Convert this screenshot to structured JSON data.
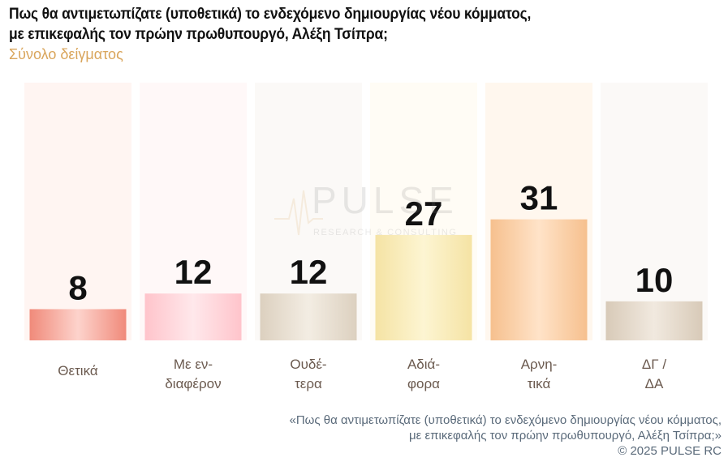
{
  "title": "Πως θα αντιμετωπίζατε (υποθετικά) το ενδεχόμενο δημιουργίας νέου κόμματος, με επικεφαλής τον πρώην πρωθυπουργό, Αλέξη Τσίπρα;",
  "subtitle": "Σύνολο δείγματος",
  "chart_data": {
    "type": "bar",
    "categories": [
      "Θετικά",
      "Με εν-\nδιαφέρον",
      "Ουδέ-\nτερα",
      "Αδιά-\nφορα",
      "Αρνη-\nτικά",
      "ΔΓ /\nΔΑ"
    ],
    "values": [
      8,
      12,
      12,
      27,
      31,
      10
    ],
    "title": "Πως θα αντιμετωπίζατε (υποθετικά) το ενδεχόμενο δημιουργίας νέου κόμματος, με επικεφαλής τον πρώην πρωθυπουργό, Αλέξη Τσίπρα;",
    "subtitle": "Σύνολο δείγματος",
    "xlabel": "",
    "ylabel": "",
    "ylim": [
      0,
      66
    ],
    "grid": false,
    "legend": "none",
    "colors": [
      "#f08a7a",
      "#ffc4cb",
      "#dcd0bf",
      "#f5e3a4",
      "#f6c08e",
      "#d8cab8"
    ],
    "highlight_colors": [
      "#fdd3cc",
      "#ffe8eb",
      "#f3ede3",
      "#fdf5d2",
      "#ffe3c8",
      "#f1e9df"
    ],
    "track_colors": [
      "#fff5f2",
      "#fff8f8",
      "#fbf9f7",
      "#fffcf5",
      "#fff7ee",
      "#fbf9f7"
    ]
  },
  "watermark": {
    "brand": "PULSE",
    "tagline": "RESEARCH & CONSULTING"
  },
  "footer": {
    "question_line1": "«Πως θα αντιμετωπίζατε (υποθετικά) το ενδεχόμενο δημιουργίας νέου κόμματος,",
    "question_line2": "με επικεφαλής τον πρώην πρωθυπουργό, Αλέξη Τσίπρα;»",
    "copyright": "©  2025  PULSE RC"
  }
}
